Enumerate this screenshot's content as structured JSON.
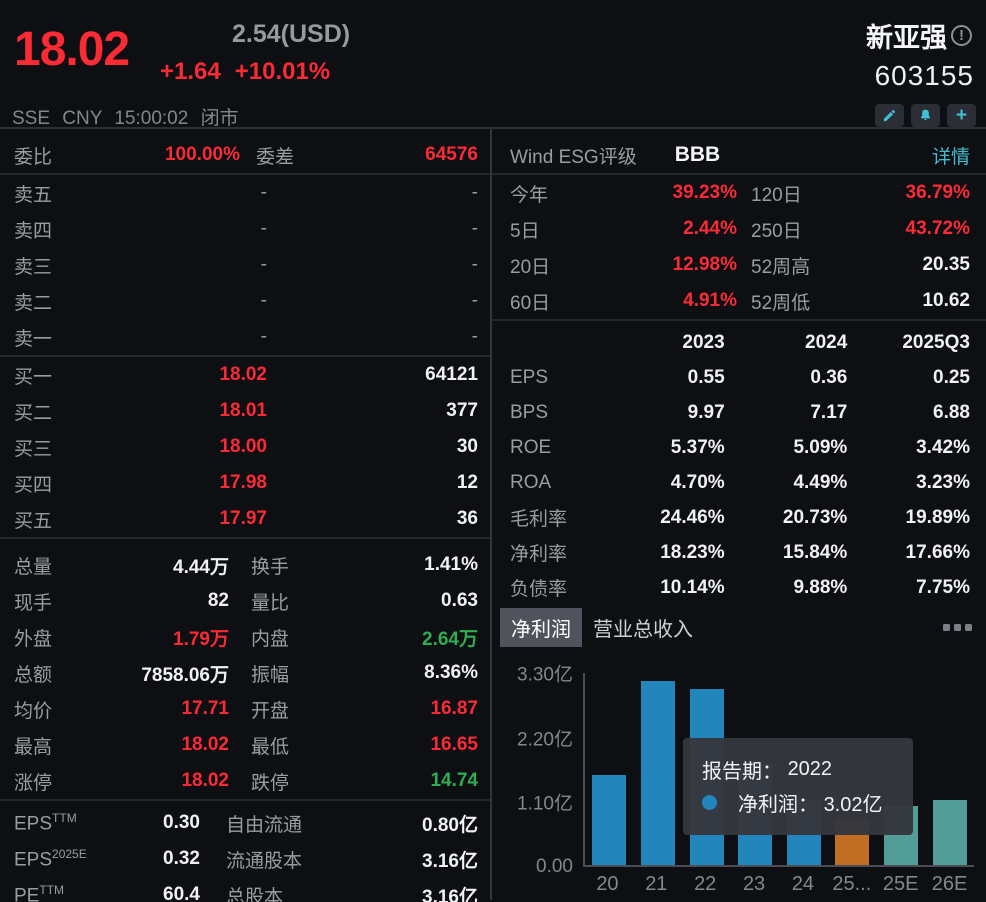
{
  "palette": {
    "up_red": "#fa2b35",
    "down_green": "#2fae51",
    "link_teal": "#41bdcf",
    "bar_blue": "#2285bb",
    "bar_orange": "#c26d24",
    "bar_teal": "#529d98"
  },
  "header": {
    "price": "18.02",
    "usd_price": "2.54(USD)",
    "change": "+1.64",
    "change_pct": "+10.01%",
    "market_line": "SSE CNY 15:00:02 闭市",
    "stock_name": "新亚强",
    "stock_code": "603155"
  },
  "order_panel": {
    "weibi_label": "委比",
    "weibi_value": "100.00%",
    "weicha_label": "委差",
    "weicha_value": "64576",
    "asks": [
      {
        "label": "卖五",
        "price": "-",
        "vol": "-"
      },
      {
        "label": "卖四",
        "price": "-",
        "vol": "-"
      },
      {
        "label": "卖三",
        "price": "-",
        "vol": "-"
      },
      {
        "label": "卖二",
        "price": "-",
        "vol": "-"
      },
      {
        "label": "卖一",
        "price": "-",
        "vol": "-"
      }
    ],
    "bids": [
      {
        "label": "买一",
        "price": "18.02",
        "vol": "64121"
      },
      {
        "label": "买二",
        "price": "18.01",
        "vol": "377"
      },
      {
        "label": "买三",
        "price": "18.00",
        "vol": "30"
      },
      {
        "label": "买四",
        "price": "17.98",
        "vol": "12"
      },
      {
        "label": "买五",
        "price": "17.97",
        "vol": "36"
      }
    ]
  },
  "stats": {
    "rows": [
      {
        "l1": "总量",
        "v1": "4.44万",
        "c1": "white",
        "l2": "换手",
        "v2": "1.41%",
        "c2": "white"
      },
      {
        "l1": "现手",
        "v1": "82",
        "c1": "white",
        "l2": "量比",
        "v2": "0.63",
        "c2": "white"
      },
      {
        "l1": "外盘",
        "v1": "1.79万",
        "c1": "red",
        "l2": "内盘",
        "v2": "2.64万",
        "c2": "green"
      },
      {
        "l1": "总额",
        "v1": "7858.06万",
        "c1": "white",
        "l2": "振幅",
        "v2": "8.36%",
        "c2": "white"
      },
      {
        "l1": "均价",
        "v1": "17.71",
        "c1": "red",
        "l2": "开盘",
        "v2": "16.87",
        "c2": "red"
      },
      {
        "l1": "最高",
        "v1": "18.02",
        "c1": "red",
        "l2": "最低",
        "v2": "16.65",
        "c2": "red"
      },
      {
        "l1": "涨停",
        "v1": "18.02",
        "c1": "red",
        "l2": "跌停",
        "v2": "14.74",
        "c2": "green"
      }
    ]
  },
  "valuation": {
    "rows": [
      {
        "l1": "EPS",
        "sup": "TTM",
        "v1": "0.30",
        "l2": "自由流通",
        "v2": "0.80亿"
      },
      {
        "l1": "EPS",
        "sup": "2025E",
        "v1": "0.32",
        "l2": "流通股本",
        "v2": "3.16亿"
      },
      {
        "l1": "PE",
        "sup": "TTM",
        "v1": "60.4",
        "l2": "总股本",
        "v2": "3.16亿"
      }
    ]
  },
  "right_panel": {
    "esg_label": "Wind ESG评级",
    "esg_value": "BBB",
    "esg_link": "详情",
    "perf_rows": [
      {
        "l1": "今年",
        "v1": "39.23%",
        "c1": "red",
        "l2": "120日",
        "v2": "36.79%",
        "c2": "red"
      },
      {
        "l1": "5日",
        "v1": "2.44%",
        "c1": "red",
        "l2": "250日",
        "v2": "43.72%",
        "c2": "red"
      },
      {
        "l1": "20日",
        "v1": "12.98%",
        "c1": "red",
        "l2": "52周高",
        "v2": "20.35",
        "c2": "white"
      },
      {
        "l1": "60日",
        "v1": "4.91%",
        "c1": "red",
        "l2": "52周低",
        "v2": "10.62",
        "c2": "white"
      }
    ],
    "fin_table": {
      "col_headers": [
        "2023",
        "2024",
        "2025Q3"
      ],
      "rows": [
        {
          "label": "EPS",
          "values": [
            "0.55",
            "0.36",
            "0.25"
          ]
        },
        {
          "label": "BPS",
          "values": [
            "9.97",
            "7.17",
            "6.88"
          ]
        },
        {
          "label": "ROE",
          "values": [
            "5.37%",
            "5.09%",
            "3.42%"
          ]
        },
        {
          "label": "ROA",
          "values": [
            "4.70%",
            "4.49%",
            "3.23%"
          ]
        },
        {
          "label": "毛利率",
          "values": [
            "24.46%",
            "20.73%",
            "19.89%"
          ]
        },
        {
          "label": "净利率",
          "values": [
            "18.23%",
            "15.84%",
            "17.66%"
          ]
        },
        {
          "label": "负债率",
          "values": [
            "10.14%",
            "9.88%",
            "7.75%"
          ]
        }
      ]
    },
    "tabs": [
      {
        "label": "净利润",
        "selected": true
      },
      {
        "label": "营业总收入",
        "selected": false
      }
    ]
  },
  "chart_data": {
    "type": "bar",
    "title": "净利润",
    "categories": [
      "20",
      "21",
      "22",
      "23",
      "24",
      "25...",
      "25E",
      "26E"
    ],
    "values": [
      1.55,
      3.16,
      3.02,
      1.74,
      1.14,
      0.79,
      1.01,
      1.12
    ],
    "unit": "亿",
    "ymax": 3.3,
    "ylim": [
      0,
      3.3
    ],
    "ylabels": [
      "3.30亿",
      "2.20亿",
      "1.10亿",
      "0.00"
    ],
    "grid": false,
    "bar_colors": [
      "blue",
      "blue",
      "blue",
      "blue",
      "blue",
      "orange",
      "teal",
      "teal"
    ],
    "colors": {
      "blue": "#2285bb",
      "orange": "#c26d24",
      "teal": "#529d98"
    },
    "tooltip": {
      "title_label": "报告期：",
      "title_value": "2022",
      "series_label": "净利润：",
      "series_value": "3.02亿"
    }
  }
}
